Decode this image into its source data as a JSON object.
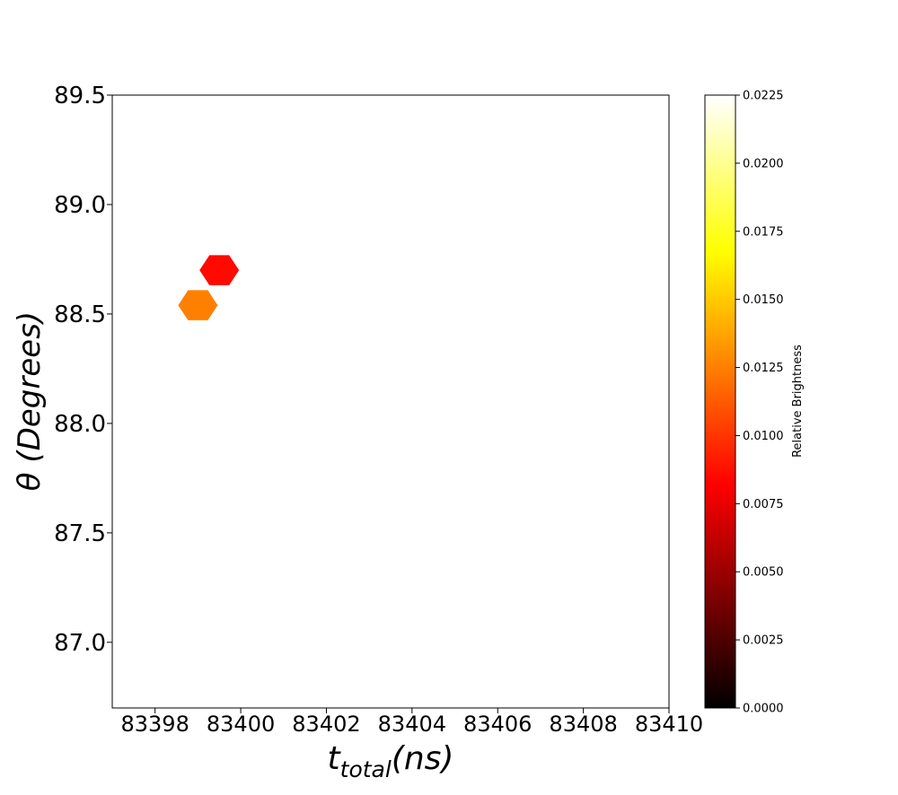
{
  "chart_data": {
    "type": "hexbin",
    "xlabel_main": "t",
    "xlabel_sub": "total",
    "xlabel_units": "(ns)",
    "ylabel_symbol": "θ",
    "ylabel_units": "(Degrees)",
    "xlim": [
      83397.0,
      83410.0
    ],
    "ylim": [
      86.7,
      89.5
    ],
    "xticks": [
      83398,
      83400,
      83402,
      83404,
      83406,
      83408,
      83410
    ],
    "xtick_labels": [
      "83398",
      "83400",
      "83402",
      "83404",
      "83406",
      "83408",
      "83410"
    ],
    "yticks": [
      87.0,
      87.5,
      88.0,
      88.5,
      89.0,
      89.5
    ],
    "ytick_labels": [
      "87.0",
      "87.5",
      "88.0",
      "88.5",
      "89.0",
      "89.5"
    ],
    "points": [
      {
        "x": 83399.5,
        "y": 88.7,
        "value": 0.0085
      },
      {
        "x": 83399.0,
        "y": 88.54,
        "value": 0.0125
      }
    ],
    "colorbar": {
      "label": "Relative Brightness",
      "colormap": "hot",
      "range": [
        0.0,
        0.0225
      ],
      "ticks": [
        0.0,
        0.0025,
        0.005,
        0.0075,
        0.01,
        0.0125,
        0.015,
        0.0175,
        0.02,
        0.0225
      ],
      "tick_labels": [
        "0.0000",
        "0.0025",
        "0.0050",
        "0.0075",
        "0.0100",
        "0.0125",
        "0.0150",
        "0.0175",
        "0.0200",
        "0.0225"
      ]
    },
    "grid": false,
    "legend": "none"
  }
}
